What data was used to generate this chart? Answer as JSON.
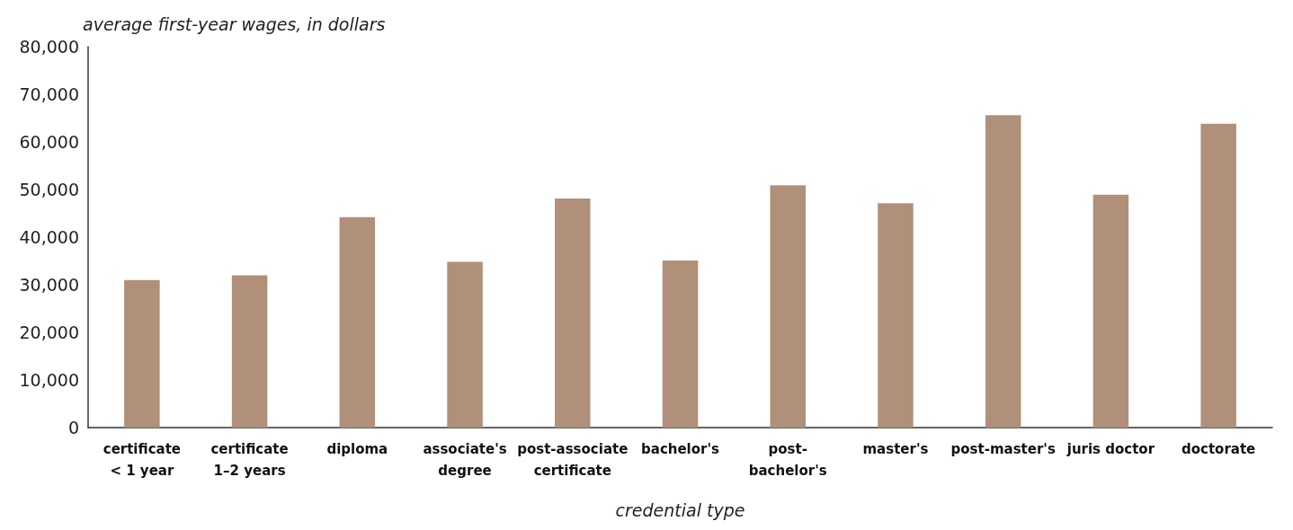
{
  "chart_data": {
    "type": "bar",
    "ylabel": "average first-year wages, in dollars",
    "xlabel": "credential type",
    "categories": [
      "certificate < 1 year",
      "certificate 1–2 years",
      "diploma",
      "associate's degree",
      "post-associate certificate",
      "bachelor's",
      "post-bachelor's",
      "master's",
      "post-master's",
      "juris doctor",
      "doctorate"
    ],
    "values": [
      31000,
      32000,
      44200,
      34800,
      48100,
      35100,
      50900,
      47100,
      65600,
      48900,
      63800
    ],
    "color": "#b09079",
    "ylim": [
      0,
      80000
    ],
    "yticks": [
      0,
      {
        "value": 10000,
        "label": "10,000"
      },
      {
        "value": 20000,
        "label": "20,000"
      },
      {
        "value": 30000,
        "label": "30,000"
      },
      {
        "value": 40000,
        "label": "40,000"
      },
      {
        "value": 50000,
        "label": "50,000"
      },
      {
        "value": 60000,
        "label": "60,000"
      },
      {
        "value": 70000,
        "label": "70,000"
      },
      {
        "value": 80000,
        "label": "80,000"
      }
    ],
    "grid": false
  }
}
